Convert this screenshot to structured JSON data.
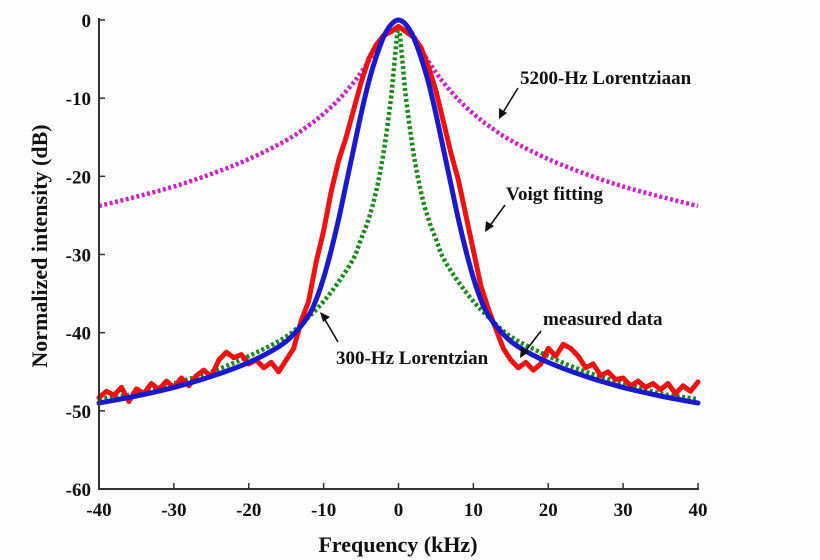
{
  "chart_data": {
    "type": "line",
    "title": "",
    "xlabel": "Frequency (kHz)",
    "ylabel": "Normalized intensity (dB)",
    "xlim": [
      -40,
      40
    ],
    "ylim": [
      -60,
      0
    ],
    "xticks": [
      -40,
      -30,
      -20,
      -10,
      0,
      10,
      20,
      30,
      40
    ],
    "yticks": [
      0,
      -10,
      -20,
      -30,
      -40,
      -50,
      -60
    ],
    "xtick_labels": [
      "-40",
      "-30",
      "-20",
      "-10",
      "0",
      "10",
      "20",
      "30",
      "40"
    ],
    "ytick_labels": [
      "0",
      "-10",
      "-20",
      "-30",
      "-40",
      "-50",
      "-60"
    ],
    "grid": false,
    "series": [
      {
        "name": "5200-Hz Lorentziaan",
        "style": "dotted",
        "color": "#cc22cc",
        "x": [
          -40,
          -35,
          -30,
          -25,
          -20,
          -15,
          -12,
          -10,
          -8,
          -6,
          -5,
          -4,
          -3,
          -2,
          -1,
          0,
          1,
          2,
          3,
          4,
          5,
          6,
          8,
          10,
          12,
          15,
          20,
          25,
          30,
          35,
          40
        ],
        "y": [
          -23.8,
          -22.6,
          -21.3,
          -19.7,
          -17.8,
          -15.4,
          -13.5,
          -12.0,
          -10.2,
          -8.0,
          -6.7,
          -5.3,
          -3.7,
          -2.0,
          -0.6,
          0,
          -0.6,
          -2.0,
          -3.7,
          -5.3,
          -6.7,
          -8.0,
          -10.2,
          -12.0,
          -13.5,
          -15.4,
          -17.8,
          -19.7,
          -21.3,
          -22.6,
          -23.8
        ]
      },
      {
        "name": "300-Hz Lorentzian",
        "style": "dotted",
        "color": "#1a8a1a",
        "x": [
          -40,
          -35,
          -30,
          -25,
          -20,
          -15,
          -12,
          -10,
          -8,
          -6,
          -5,
          -4,
          -3,
          -2,
          -1,
          -0.5,
          0,
          0.5,
          1,
          2,
          3,
          4,
          5,
          6,
          8,
          10,
          12,
          15,
          20,
          25,
          30,
          35,
          40
        ],
        "y": [
          -48.5,
          -47.8,
          -46.5,
          -45,
          -43,
          -40.5,
          -38,
          -36,
          -33.5,
          -30.5,
          -28,
          -25.5,
          -22,
          -17,
          -10,
          -5,
          -1,
          -5,
          -10,
          -17,
          -22,
          -25.5,
          -28,
          -30.5,
          -33.5,
          -36,
          -38,
          -40.5,
          -43,
          -45,
          -46.5,
          -47.8,
          -48.5
        ]
      },
      {
        "name": "measured data",
        "style": "solid",
        "color": "#ee1111",
        "x": [
          -40,
          -39,
          -38,
          -37,
          -36,
          -35,
          -34,
          -33,
          -32,
          -31,
          -30,
          -29,
          -28,
          -27,
          -26,
          -25,
          -24,
          -23,
          -22,
          -21,
          -20,
          -19,
          -18,
          -17,
          -16,
          -15,
          -14,
          -13,
          -12,
          -11,
          -10,
          -9,
          -8,
          -7,
          -6,
          -5,
          -4,
          -3,
          -2,
          -1,
          0,
          1,
          2,
          3,
          4,
          5,
          6,
          7,
          8,
          9,
          10,
          11,
          12,
          13,
          14,
          15,
          16,
          17,
          18,
          19,
          20,
          21,
          22,
          23,
          24,
          25,
          26,
          27,
          28,
          29,
          30,
          31,
          32,
          33,
          34,
          35,
          36,
          37,
          38,
          39,
          40
        ],
        "y": [
          -48.3,
          -47.5,
          -48,
          -47,
          -48.8,
          -47.2,
          -47.8,
          -46.5,
          -47.3,
          -46.2,
          -47,
          -45.8,
          -46.8,
          -45.5,
          -44.8,
          -45.6,
          -43.5,
          -42.5,
          -43.2,
          -42.8,
          -44,
          -43.5,
          -44.5,
          -43.8,
          -45,
          -43.5,
          -42,
          -38.5,
          -36,
          -31,
          -27,
          -22,
          -18,
          -15,
          -11.5,
          -8,
          -5,
          -3.2,
          -2,
          -1.5,
          -0.8,
          -1.5,
          -2.2,
          -3.5,
          -6,
          -9,
          -13,
          -17,
          -20.5,
          -25,
          -29.5,
          -34,
          -37,
          -39.5,
          -42,
          -43.5,
          -44.5,
          -43.8,
          -44.8,
          -44,
          -42,
          -43,
          -41.5,
          -42,
          -43,
          -44.5,
          -44,
          -45.5,
          -45,
          -46,
          -45.8,
          -46.8,
          -46.2,
          -47,
          -46.5,
          -47.3,
          -46.5,
          -47.8,
          -46.8,
          -47.5,
          -46.3
        ]
      },
      {
        "name": "Voigt fitting",
        "style": "solid",
        "color": "#1a1acc",
        "x": [
          -40,
          -35,
          -30,
          -25,
          -20,
          -16,
          -14,
          -12,
          -11,
          -10,
          -9,
          -8,
          -7,
          -6,
          -5,
          -4,
          -3,
          -2,
          -1,
          0,
          1,
          2,
          3,
          4,
          5,
          6,
          7,
          8,
          9,
          10,
          11,
          12,
          14,
          16,
          20,
          25,
          30,
          35,
          40
        ],
        "y": [
          -49,
          -48.1,
          -47,
          -45.6,
          -43.8,
          -41.8,
          -40.2,
          -37.8,
          -35.8,
          -33,
          -29.5,
          -25.5,
          -21,
          -16.5,
          -12,
          -8,
          -4.8,
          -2.2,
          -0.6,
          0,
          -0.6,
          -2.2,
          -4.8,
          -8,
          -12,
          -16.5,
          -21,
          -25.5,
          -29.5,
          -33,
          -35.8,
          -37.8,
          -40.2,
          -41.8,
          -43.8,
          -45.6,
          -47,
          -48.1,
          -49
        ]
      }
    ],
    "annotations": [
      {
        "text": "5200-Hz Lorentziaan",
        "points_to": "5200-Hz Lorentziaan"
      },
      {
        "text": "Voigt fitting",
        "points_to": "Voigt fitting"
      },
      {
        "text": "measured data",
        "points_to": "measured data"
      },
      {
        "text": "300-Hz Lorentzian",
        "points_to": "300-Hz Lorentzian"
      }
    ]
  }
}
